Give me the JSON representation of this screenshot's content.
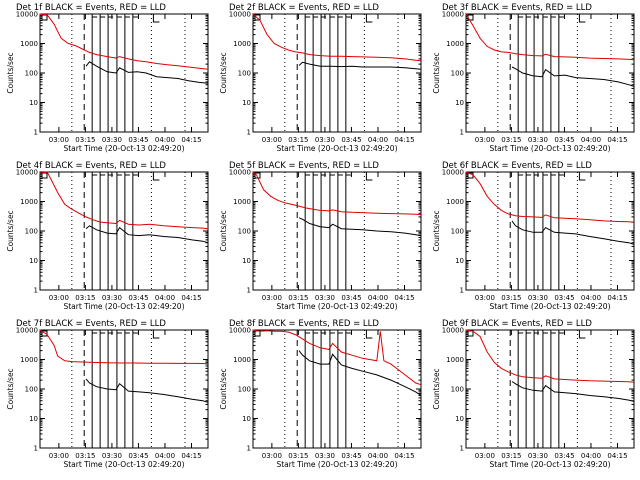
{
  "chart_data": {
    "type": "line",
    "series_names": [
      "Events",
      "LLD"
    ],
    "series_colors": {
      "Events": "#000000",
      "LLD": "#e00000"
    },
    "xlabel": "Start Time (20-Oct-13 02:49:20)",
    "ylabel": "Counts/sec",
    "y_scale": "log",
    "ylim": [
      1,
      10000
    ],
    "y_ticks": [
      1,
      10,
      100,
      1000,
      10000
    ],
    "y_tick_labels": [
      "1",
      "10",
      "100",
      "1000",
      "10000"
    ],
    "x_unit": "minutes after 02:49:20",
    "xlim": [
      0,
      95
    ],
    "x_ticks": [
      10.67,
      25.67,
      40.67,
      55.67,
      70.67,
      85.67
    ],
    "x_tick_labels": [
      "03:00",
      "03:15",
      "03:30",
      "03:45",
      "04:00",
      "04:15"
    ],
    "event_markers": {
      "solid": [
        29.5,
        34,
        38.5,
        43.5,
        48,
        52.5
      ],
      "dashed": 25,
      "dotted": [
        -1,
        18,
        63,
        82
      ]
    },
    "panels": [
      {
        "title": "Det 1f BLACK = Events, RED = LLD",
        "series": [
          {
            "name": "Events",
            "x": [
              26,
              28,
              32,
              38,
              43,
              45,
              50,
              55,
              60,
              66,
              72,
              78,
              84,
              90,
              95
            ],
            "values": [
              170,
              240,
              170,
              110,
              100,
              150,
              105,
              110,
              100,
              75,
              70,
              65,
              55,
              48,
              45
            ]
          },
          {
            "name": "LLD",
            "x": [
              -2,
              0,
              4,
              8,
              12,
              16,
              20,
              24,
              28,
              32,
              38,
              43,
              45,
              50,
              55,
              60,
              66,
              72,
              78,
              84,
              90,
              95
            ],
            "values": [
              9000,
              10000,
              9500,
              4500,
              1500,
              1000,
              850,
              650,
              500,
              420,
              360,
              320,
              360,
              300,
              260,
              240,
              210,
              190,
              175,
              160,
              145,
              135
            ]
          }
        ]
      },
      {
        "title": "Det 2f BLACK = Events, RED = LLD",
        "series": [
          {
            "name": "Events",
            "x": [
              26,
              28,
              32,
              38,
              44,
              50,
              56,
              62,
              70,
              78,
              86,
              92,
              95
            ],
            "values": [
              180,
              230,
              200,
              170,
              170,
              165,
              170,
              160,
              160,
              160,
              150,
              140,
              135
            ]
          },
          {
            "name": "LLD",
            "x": [
              -2,
              0,
              4,
              8,
              12,
              16,
              20,
              24,
              28,
              32,
              38,
              44,
              50,
              56,
              62,
              70,
              78,
              86,
              92,
              95
            ],
            "values": [
              9000,
              10000,
              6000,
              2000,
              1000,
              750,
              600,
              520,
              480,
              420,
              390,
              370,
              370,
              360,
              350,
              340,
              330,
              300,
              270,
              260
            ]
          }
        ]
      },
      {
        "title": "Det 3f BLACK = Events, RED = LLD",
        "series": [
          {
            "name": "Events",
            "x": [
              26,
              28,
              32,
              38,
              43,
              45,
              50,
              56,
              62,
              70,
              78,
              86,
              92,
              95
            ],
            "values": [
              160,
              140,
              100,
              80,
              75,
              130,
              80,
              85,
              70,
              65,
              60,
              50,
              40,
              35
            ]
          },
          {
            "name": "LLD",
            "x": [
              -2,
              0,
              4,
              8,
              12,
              16,
              20,
              24,
              28,
              32,
              38,
              43,
              45,
              50,
              56,
              62,
              70,
              78,
              86,
              92,
              95
            ],
            "values": [
              9000,
              10000,
              4000,
              1500,
              800,
              600,
              520,
              500,
              450,
              420,
              390,
              380,
              430,
              360,
              350,
              340,
              320,
              310,
              300,
              290,
              280
            ]
          }
        ]
      },
      {
        "title": "Det 4f BLACK = Events, RED = LLD",
        "series": [
          {
            "name": "Events",
            "x": [
              26,
              28,
              32,
              38,
              43,
              45,
              50,
              56,
              62,
              70,
              78,
              86,
              92,
              95
            ],
            "values": [
              120,
              150,
              110,
              85,
              80,
              130,
              75,
              70,
              75,
              65,
              60,
              50,
              45,
              40
            ]
          },
          {
            "name": "LLD",
            "x": [
              -2,
              0,
              4,
              6,
              10,
              14,
              18,
              22,
              26,
              30,
              34,
              38,
              43,
              45,
              50,
              56,
              62,
              70,
              78,
              86,
              92,
              95
            ],
            "values": [
              9500,
              9000,
              11000,
              6000,
              2000,
              800,
              550,
              400,
              300,
              240,
              200,
              190,
              180,
              230,
              170,
              160,
              170,
              150,
              140,
              130,
              125,
              120
            ]
          }
        ]
      },
      {
        "title": "Det 5f BLACK = Events, RED = LLD",
        "series": [
          {
            "name": "Events",
            "x": [
              26,
              28,
              32,
              38,
              43,
              45,
              50,
              56,
              62,
              70,
              78,
              86,
              92,
              95
            ],
            "values": [
              280,
              250,
              180,
              140,
              130,
              170,
              120,
              115,
              110,
              100,
              95,
              85,
              75,
              70
            ]
          },
          {
            "name": "LLD",
            "x": [
              -2,
              0,
              2,
              6,
              10,
              14,
              18,
              22,
              26,
              30,
              34,
              38,
              43,
              45,
              50,
              56,
              62,
              70,
              78,
              86,
              92,
              95
            ],
            "values": [
              9000,
              10000,
              8000,
              2500,
              1500,
              1100,
              900,
              800,
              700,
              600,
              550,
              500,
              480,
              520,
              450,
              430,
              420,
              400,
              390,
              380,
              370,
              360
            ]
          }
        ]
      },
      {
        "title": "Det 6f BLACK = Events, RED = LLD",
        "series": [
          {
            "name": "Events",
            "x": [
              26,
              28,
              32,
              38,
              43,
              45,
              50,
              56,
              62,
              70,
              78,
              86,
              92,
              95
            ],
            "values": [
              220,
              150,
              110,
              90,
              90,
              130,
              90,
              85,
              80,
              65,
              55,
              45,
              40,
              35
            ]
          },
          {
            "name": "LLD",
            "x": [
              -2,
              0,
              4,
              8,
              12,
              16,
              20,
              24,
              28,
              32,
              38,
              43,
              45,
              50,
              56,
              62,
              70,
              78,
              86,
              92,
              95
            ],
            "values": [
              9000,
              10000,
              8000,
              4000,
              1500,
              800,
              500,
              380,
              330,
              310,
              300,
              290,
              350,
              280,
              270,
              260,
              240,
              220,
              210,
              205,
              200
            ]
          }
        ]
      },
      {
        "title": "Det 7f BLACK = Events, RED = LLD",
        "series": [
          {
            "name": "Events",
            "x": [
              26,
              28,
              32,
              38,
              43,
              45,
              50,
              56,
              62,
              70,
              78,
              86,
              92,
              95
            ],
            "values": [
              220,
              160,
              120,
              100,
              95,
              150,
              85,
              80,
              75,
              65,
              55,
              45,
              40,
              35
            ]
          },
          {
            "name": "LLD",
            "x": [
              -2,
              0,
              4,
              8,
              10,
              14,
              18,
              24,
              30,
              38,
              46,
              54,
              62,
              70,
              78,
              86,
              92,
              95
            ],
            "values": [
              9000,
              10000,
              7000,
              3000,
              1300,
              900,
              850,
              820,
              800,
              780,
              760,
              760,
              750,
              750,
              740,
              740,
              730,
              720
            ]
          }
        ]
      },
      {
        "title": "Det 8f BLACK = Events, RED = LLD",
        "series": [
          {
            "name": "Events",
            "x": [
              26,
              28,
              32,
              38,
              43,
              45,
              50,
              56,
              62,
              70,
              78,
              86,
              92,
              95
            ],
            "values": [
              2000,
              1400,
              900,
              700,
              700,
              1500,
              650,
              500,
              400,
              300,
              200,
              120,
              80,
              60
            ]
          },
          {
            "name": "LLD",
            "x": [
              -2,
              0,
              4,
              8,
              12,
              16,
              20,
              24,
              28,
              32,
              38,
              43,
              45,
              50,
              56,
              62,
              70,
              72,
              74,
              78,
              86,
              92,
              95
            ],
            "values": [
              9000,
              10000,
              9000,
              9500,
              9000,
              9000,
              8500,
              7000,
              5000,
              3500,
              2500,
              2200,
              3500,
              1800,
              1400,
              1100,
              900,
              9000,
              900,
              700,
              300,
              160,
              140
            ]
          }
        ]
      },
      {
        "title": "Det 9f BLACK = Events, RED = LLD",
        "series": [
          {
            "name": "Events",
            "x": [
              26,
              28,
              32,
              38,
              43,
              45,
              50,
              56,
              62,
              70,
              78,
              86,
              92,
              95
            ],
            "values": [
              180,
              150,
              110,
              90,
              85,
              130,
              80,
              75,
              70,
              60,
              55,
              48,
              42,
              38
            ]
          },
          {
            "name": "LLD",
            "x": [
              -2,
              0,
              4,
              8,
              12,
              16,
              20,
              24,
              28,
              32,
              38,
              43,
              45,
              50,
              56,
              62,
              70,
              78,
              86,
              92,
              95
            ],
            "values": [
              9000,
              10000,
              9000,
              6000,
              1800,
              800,
              500,
              380,
              300,
              260,
              240,
              230,
              280,
              220,
              210,
              200,
              190,
              185,
              180,
              175,
              170
            ]
          }
        ]
      }
    ]
  }
}
